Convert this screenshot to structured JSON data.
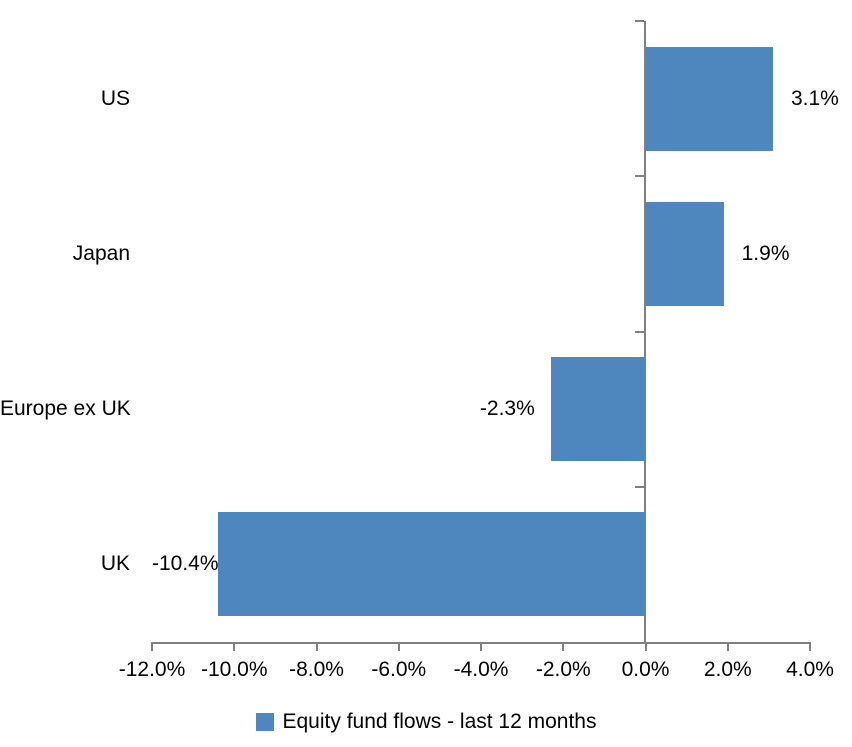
{
  "chart_data": {
    "type": "bar",
    "orientation": "horizontal",
    "title": "",
    "categories": [
      "US",
      "Japan",
      "Europe ex UK",
      "UK"
    ],
    "values": [
      3.1,
      1.9,
      -2.3,
      -10.4
    ],
    "value_labels": [
      "3.1%",
      "1.9%",
      "-2.3%",
      "-10.4%"
    ],
    "series_name": "Equity fund flows - last 12 months",
    "x_tick_values": [
      -12,
      -10,
      -8,
      -6,
      -4,
      -2,
      0,
      2,
      4
    ],
    "x_tick_labels": [
      "-12.0%",
      "-10.0%",
      "-8.0%",
      "-6.0%",
      "-4.0%",
      "-2.0%",
      "0.0%",
      "2.0%",
      "4.0%"
    ],
    "xlim": [
      -12,
      4
    ],
    "grid": false,
    "legend_position": "bottom",
    "bar_color": "#4E86BE",
    "axis_color": "#808080",
    "text_color": "#000000",
    "background_color": "#FFFFFF"
  }
}
